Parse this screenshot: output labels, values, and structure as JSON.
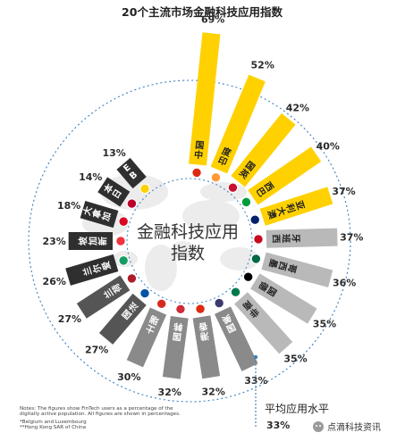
{
  "chart_data": {
    "type": "bar",
    "layout": "radial",
    "title": "20个主流市场金融科技应用指数",
    "center_label": [
      "金融科技应用",
      "指数"
    ],
    "categories": [
      "中国",
      "印度",
      "英国",
      "巴西",
      "澳大利亚",
      "西班牙",
      "墨西哥",
      "德国",
      "南非",
      "美国",
      "香港",
      "韩国",
      "瑞士",
      "法国",
      "荷兰",
      "爱尔兰",
      "新加坡",
      "加拿大",
      "日本",
      "BE LUX"
    ],
    "values": [
      69,
      52,
      42,
      40,
      37,
      37,
      36,
      35,
      35,
      33,
      32,
      32,
      30,
      27,
      27,
      26,
      23,
      18,
      14,
      13
    ],
    "value_labels": [
      "69%",
      "52%",
      "42%",
      "40%",
      "37%",
      "37%",
      "36%",
      "35%",
      "35%",
      "33%",
      "32%",
      "32%",
      "30%",
      "27%",
      "27%",
      "26%",
      "23%",
      "18%",
      "14%",
      "13%"
    ],
    "highlighted": [
      "中国",
      "印度",
      "英国",
      "巴西",
      "澳大利亚"
    ],
    "average": {
      "label": "平均应用水平",
      "value_label": "33%"
    },
    "colors": {
      "highlight": "#FFD100",
      "mid": "#B9B9B9",
      "dark": "#8A8A8A",
      "darker": "#555555",
      "darkest": "#2F2F2F",
      "ring": "#3A7FC0"
    }
  },
  "notes": [
    "Notes: The figures show FinTech users as a percentage of the",
    "digitally active population. All figures are shown in percentages.",
    "*Belgium and Luxembourg",
    "**Hong Kong SAR of China"
  ],
  "watermark": "点滴科技资讯"
}
